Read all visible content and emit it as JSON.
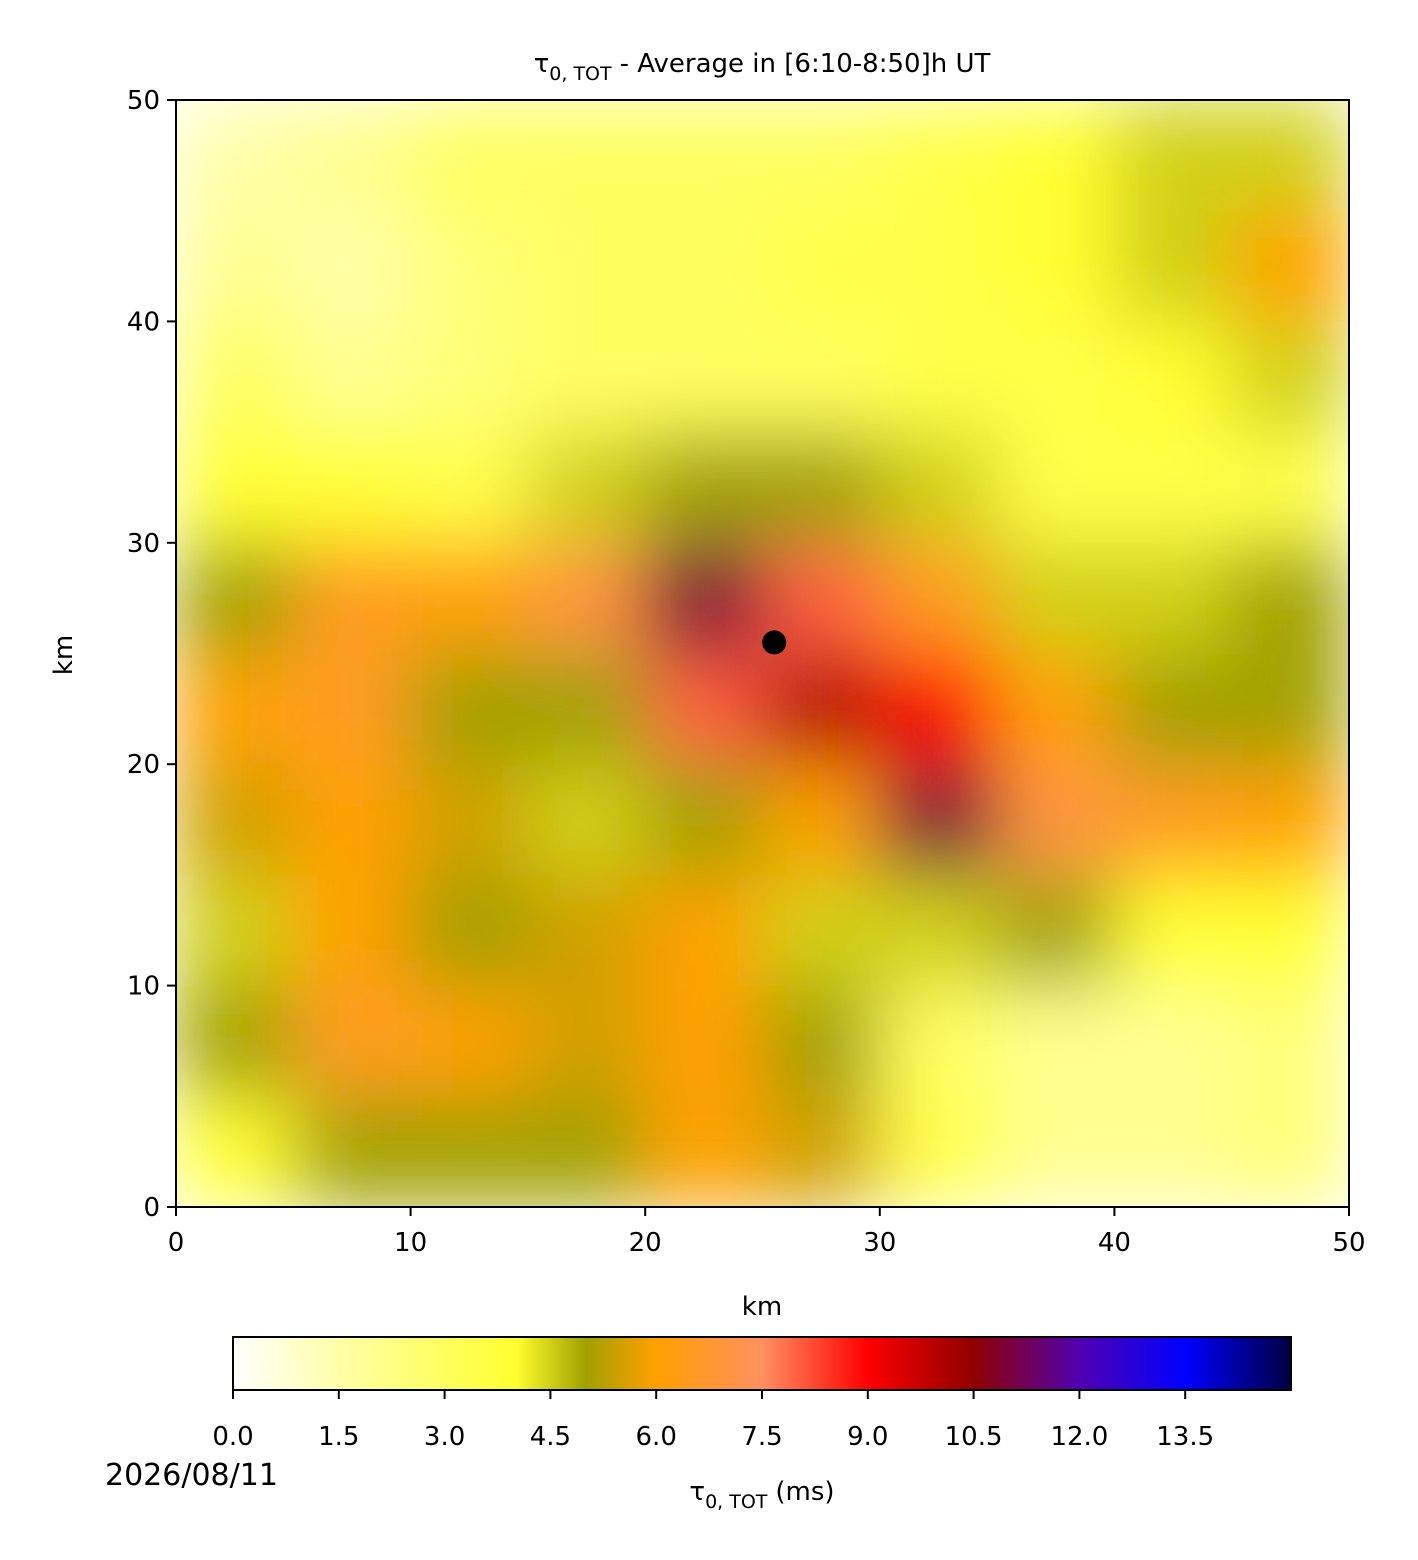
{
  "chart_data": {
    "type": "heatmap",
    "title": {
      "symbol": "τ",
      "subscript": "0, TOT",
      "text": "- Average in [6:10-8:50]h UT"
    },
    "x_label": "km",
    "y_label": "km",
    "xlim": [
      0,
      50
    ],
    "ylim": [
      0,
      50
    ],
    "xticks": [
      0,
      10,
      20,
      30,
      40,
      50
    ],
    "yticks": [
      0,
      10,
      20,
      30,
      40,
      50
    ],
    "x": [
      2.5,
      7.5,
      12.5,
      17.5,
      22.5,
      27.5,
      32.5,
      37.5,
      42.5,
      47.5
    ],
    "y": [
      2.5,
      7.5,
      12.5,
      17.5,
      22.5,
      27.5,
      32.5,
      37.5,
      42.5,
      47.5
    ],
    "z": [
      [
        4,
        5,
        5,
        5,
        6,
        5.5,
        3.5,
        2,
        2,
        2.5
      ],
      [
        5,
        6.5,
        6,
        5.5,
        6,
        5,
        3,
        2,
        2,
        2.5
      ],
      [
        4.5,
        6,
        5,
        5.5,
        6,
        4.5,
        4.5,
        5,
        4,
        4
      ],
      [
        5.5,
        6,
        5.5,
        4.5,
        5,
        6,
        11,
        7,
        6.5,
        6
      ],
      [
        6,
        6.5,
        5,
        5,
        8,
        10,
        9,
        6,
        5,
        5
      ],
      [
        5,
        6.5,
        6,
        7,
        11,
        8,
        6.5,
        4.5,
        4.5,
        5
      ],
      [
        4,
        4,
        3.5,
        4.5,
        5,
        5,
        4.5,
        3.5,
        3.5,
        3.5
      ],
      [
        3,
        2,
        2.5,
        3,
        3,
        3,
        3.5,
        3.5,
        4,
        4.5
      ],
      [
        2,
        1.5,
        2.5,
        3,
        3,
        3.5,
        3.5,
        4,
        4.5,
        6
      ],
      [
        1.5,
        2,
        3,
        3,
        3,
        3,
        3.5,
        4,
        4.5,
        4.5
      ]
    ],
    "marker": {
      "x": 25.5,
      "y": 25.5,
      "color": "#000000"
    },
    "clim": [
      0,
      15
    ],
    "colormap": [
      [
        0,
        "#ffffff"
      ],
      [
        1.5,
        "#ffffa8"
      ],
      [
        3,
        "#ffff60"
      ],
      [
        4,
        "#ffff30"
      ],
      [
        5,
        "#a0a000"
      ],
      [
        6,
        "#ffa000"
      ],
      [
        7.5,
        "#ff9060"
      ],
      [
        9,
        "#ff0000"
      ],
      [
        10.5,
        "#900000"
      ],
      [
        12,
        "#5000b0"
      ],
      [
        13.5,
        "#0000ff"
      ],
      [
        15,
        "#000040"
      ]
    ],
    "colorbar_ticks": [
      {
        "value": 0,
        "label": "0.0"
      },
      {
        "value": 1.5,
        "label": "1.5"
      },
      {
        "value": 3,
        "label": "3.0"
      },
      {
        "value": 4.5,
        "label": "4.5"
      },
      {
        "value": 6,
        "label": "6.0"
      },
      {
        "value": 7.5,
        "label": "7.5"
      },
      {
        "value": 9,
        "label": "9.0"
      },
      {
        "value": 10.5,
        "label": "10.5"
      },
      {
        "value": 12,
        "label": "12.0"
      },
      {
        "value": 13.5,
        "label": "13.5"
      }
    ],
    "colorbar_label": {
      "symbol": "τ",
      "subscript": "0, TOT",
      "unit": "(ms)"
    },
    "date": "2026/08/11"
  }
}
